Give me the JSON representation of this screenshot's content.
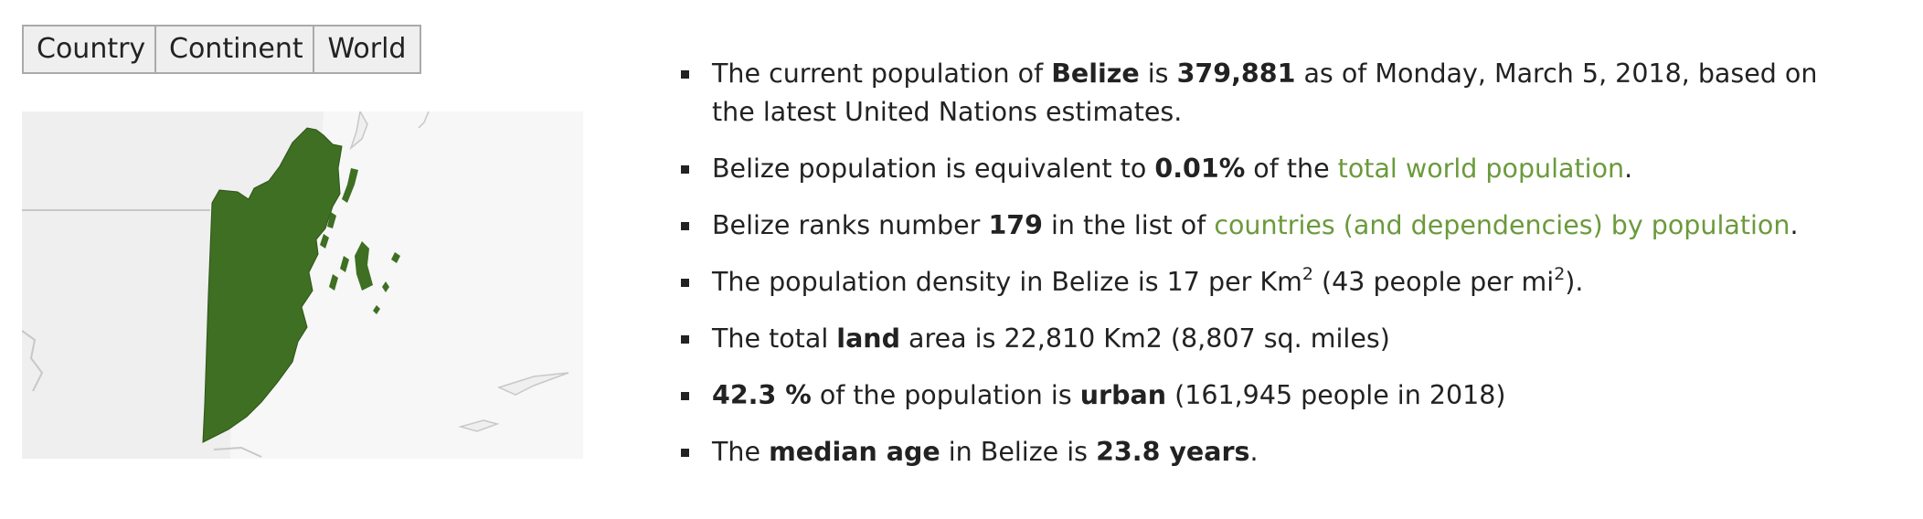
{
  "tabs": [
    {
      "label": "Country"
    },
    {
      "label": "Continent"
    },
    {
      "label": "World"
    }
  ],
  "map": {
    "country_icon": "belize-map-icon",
    "fill_color": "#3e6f22",
    "land_color": "#efefef",
    "water_color": "#f7f7f7",
    "border_color": "#c8c8c8"
  },
  "facts": {
    "population": {
      "t1": "The current population of ",
      "country": "Belize",
      "t2": " is ",
      "value": "379,881",
      "t3": " as of Monday, March 5, 2018, based on the latest United Nations estimates."
    },
    "share": {
      "t1": "Belize population is equivalent to ",
      "value": "0.01%",
      "t2": " of the ",
      "link": "total world population",
      "t3": "."
    },
    "rank": {
      "t1": "Belize ranks number ",
      "value": "179",
      "t2": " in the list of ",
      "link": "countries (and dependencies) by population",
      "t3": "."
    },
    "density": {
      "t1": "The population density in Belize is 17 per Km",
      "sup1": "2",
      "t2": " (43 people per mi",
      "sup2": "2",
      "t3": ")."
    },
    "area": {
      "t1": "The total ",
      "bold": "land",
      "t2": " area is 22,810 Km2 (8,807 sq. miles)"
    },
    "urban": {
      "value": "42.3 %",
      "t1": " of the population is ",
      "bold": "urban",
      "t2": " (161,945 people in 2018)"
    },
    "median": {
      "t1": "The ",
      "bold": "median age",
      "t2": " in Belize is ",
      "value": "23.8 years",
      "t3": "."
    }
  }
}
